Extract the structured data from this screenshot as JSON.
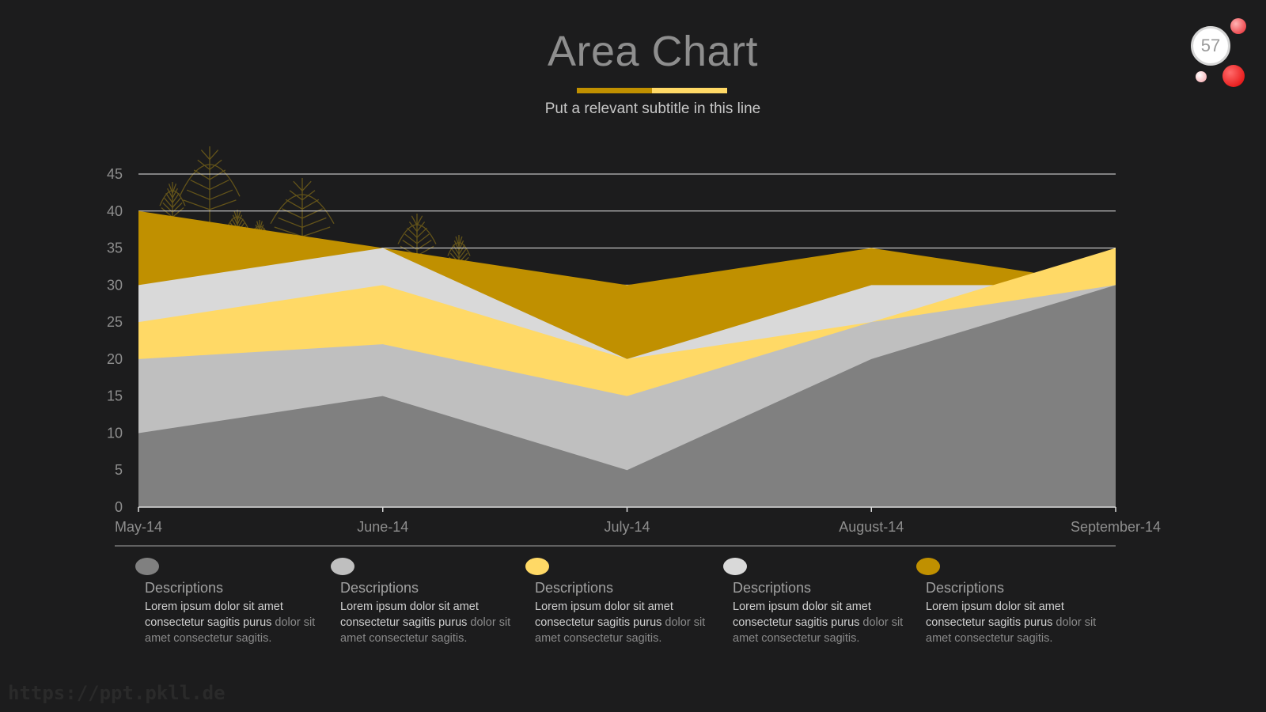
{
  "slide": {
    "title": "Area Chart",
    "subtitle": "Put a relevant subtitle in this line",
    "page_number": "57",
    "watermark": "https://ppt.pkll.de"
  },
  "colors": {
    "background": "#1c1c1d",
    "accent_dark_gold": "#c09000",
    "accent_light_gold": "#ffd966",
    "series_gray_dark": "#808080",
    "series_gray_light": "#bfbfbf",
    "series_white": "#d9d9d9"
  },
  "chart_data": {
    "type": "area",
    "stacked": false,
    "categories": [
      "May-14",
      "June-14",
      "July-14",
      "August-14",
      "September-14"
    ],
    "ylim": [
      0,
      45
    ],
    "yticks": [
      0,
      5,
      10,
      15,
      20,
      25,
      30,
      35,
      40,
      45
    ],
    "grid": true,
    "series": [
      {
        "values": [
          40,
          35,
          30,
          35,
          30
        ],
        "color": "#c09000"
      },
      {
        "values": [
          30,
          35,
          20,
          30,
          30
        ],
        "color": "#d9d9d9"
      },
      {
        "values": [
          25,
          30,
          20,
          25,
          35
        ],
        "color": "#ffd966"
      },
      {
        "values": [
          20,
          22,
          15,
          25,
          30
        ],
        "color": "#bfbfbf"
      },
      {
        "values": [
          10,
          15,
          5,
          20,
          30
        ],
        "color": "#808080"
      }
    ]
  },
  "legend": [
    {
      "title": "Descriptions",
      "bold_text": "Lorem ipsum dolor sit amet consectetur sagitis purus",
      "dim_text": " dolor sit amet consectetur sagitis.",
      "color": "#808080"
    },
    {
      "title": "Descriptions",
      "bold_text": "Lorem ipsum dolor sit amet consectetur sagitis purus",
      "dim_text": " dolor sit amet consectetur sagitis.",
      "color": "#bfbfbf"
    },
    {
      "title": "Descriptions",
      "bold_text": "Lorem ipsum dolor sit amet consectetur sagitis purus",
      "dim_text": " dolor sit amet consectetur sagitis.",
      "color": "#ffd966"
    },
    {
      "title": "Descriptions",
      "bold_text": "Lorem ipsum dolor sit amet consectetur sagitis purus",
      "dim_text": " dolor sit amet consectetur sagitis.",
      "color": "#d9d9d9"
    },
    {
      "title": "Descriptions",
      "bold_text": "Lorem ipsum dolor sit amet consectetur sagitis purus",
      "dim_text": " dolor sit amet consectetur sagitis.",
      "color": "#c09000"
    }
  ]
}
